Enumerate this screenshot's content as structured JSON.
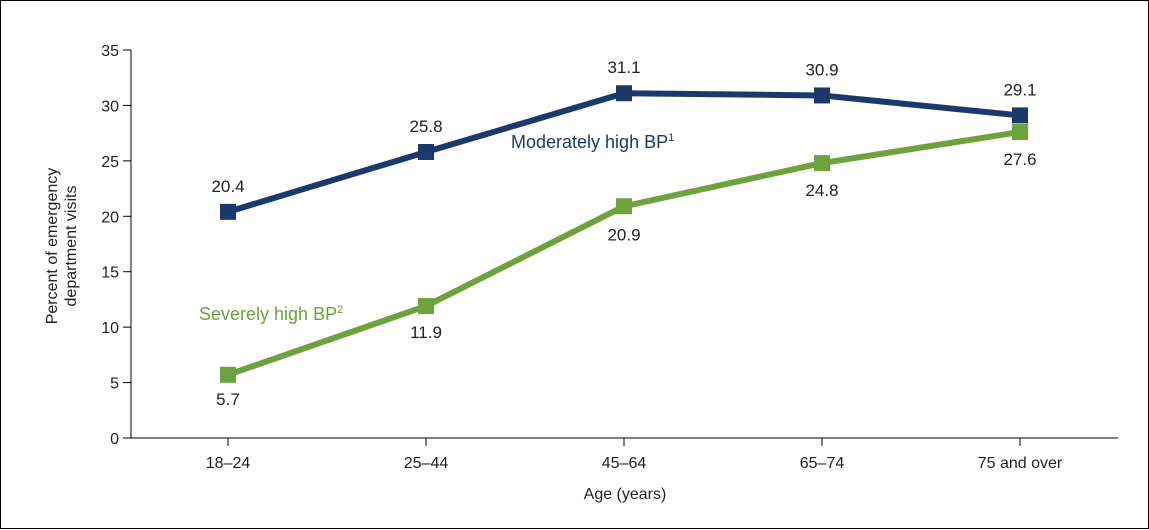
{
  "chart_data": {
    "type": "line",
    "categories": [
      "18–24",
      "25–44",
      "45–64",
      "65–74",
      "75 and over"
    ],
    "series": [
      {
        "name": "Moderately high BP",
        "footnote": "1",
        "color": "#1b3a6b",
        "values": [
          20.4,
          25.8,
          31.1,
          30.9,
          29.1
        ],
        "labels": [
          "20.4",
          "25.8",
          "31.1",
          "30.9",
          "29.1"
        ]
      },
      {
        "name": "Severely high BP",
        "footnote": "2",
        "color": "#6ea23c",
        "values": [
          5.7,
          11.9,
          20.9,
          24.8,
          27.6
        ],
        "labels": [
          "5.7",
          "11.9",
          "20.9",
          "24.8",
          "27.6"
        ]
      }
    ],
    "xlabel": "Age (years)",
    "ylabel_lines": [
      "Percent of emergency",
      "department visits"
    ],
    "ylim": [
      0,
      35
    ],
    "yticks": [
      0,
      5,
      10,
      15,
      20,
      25,
      30,
      35
    ],
    "grid": false,
    "legend": "inline labels"
  }
}
